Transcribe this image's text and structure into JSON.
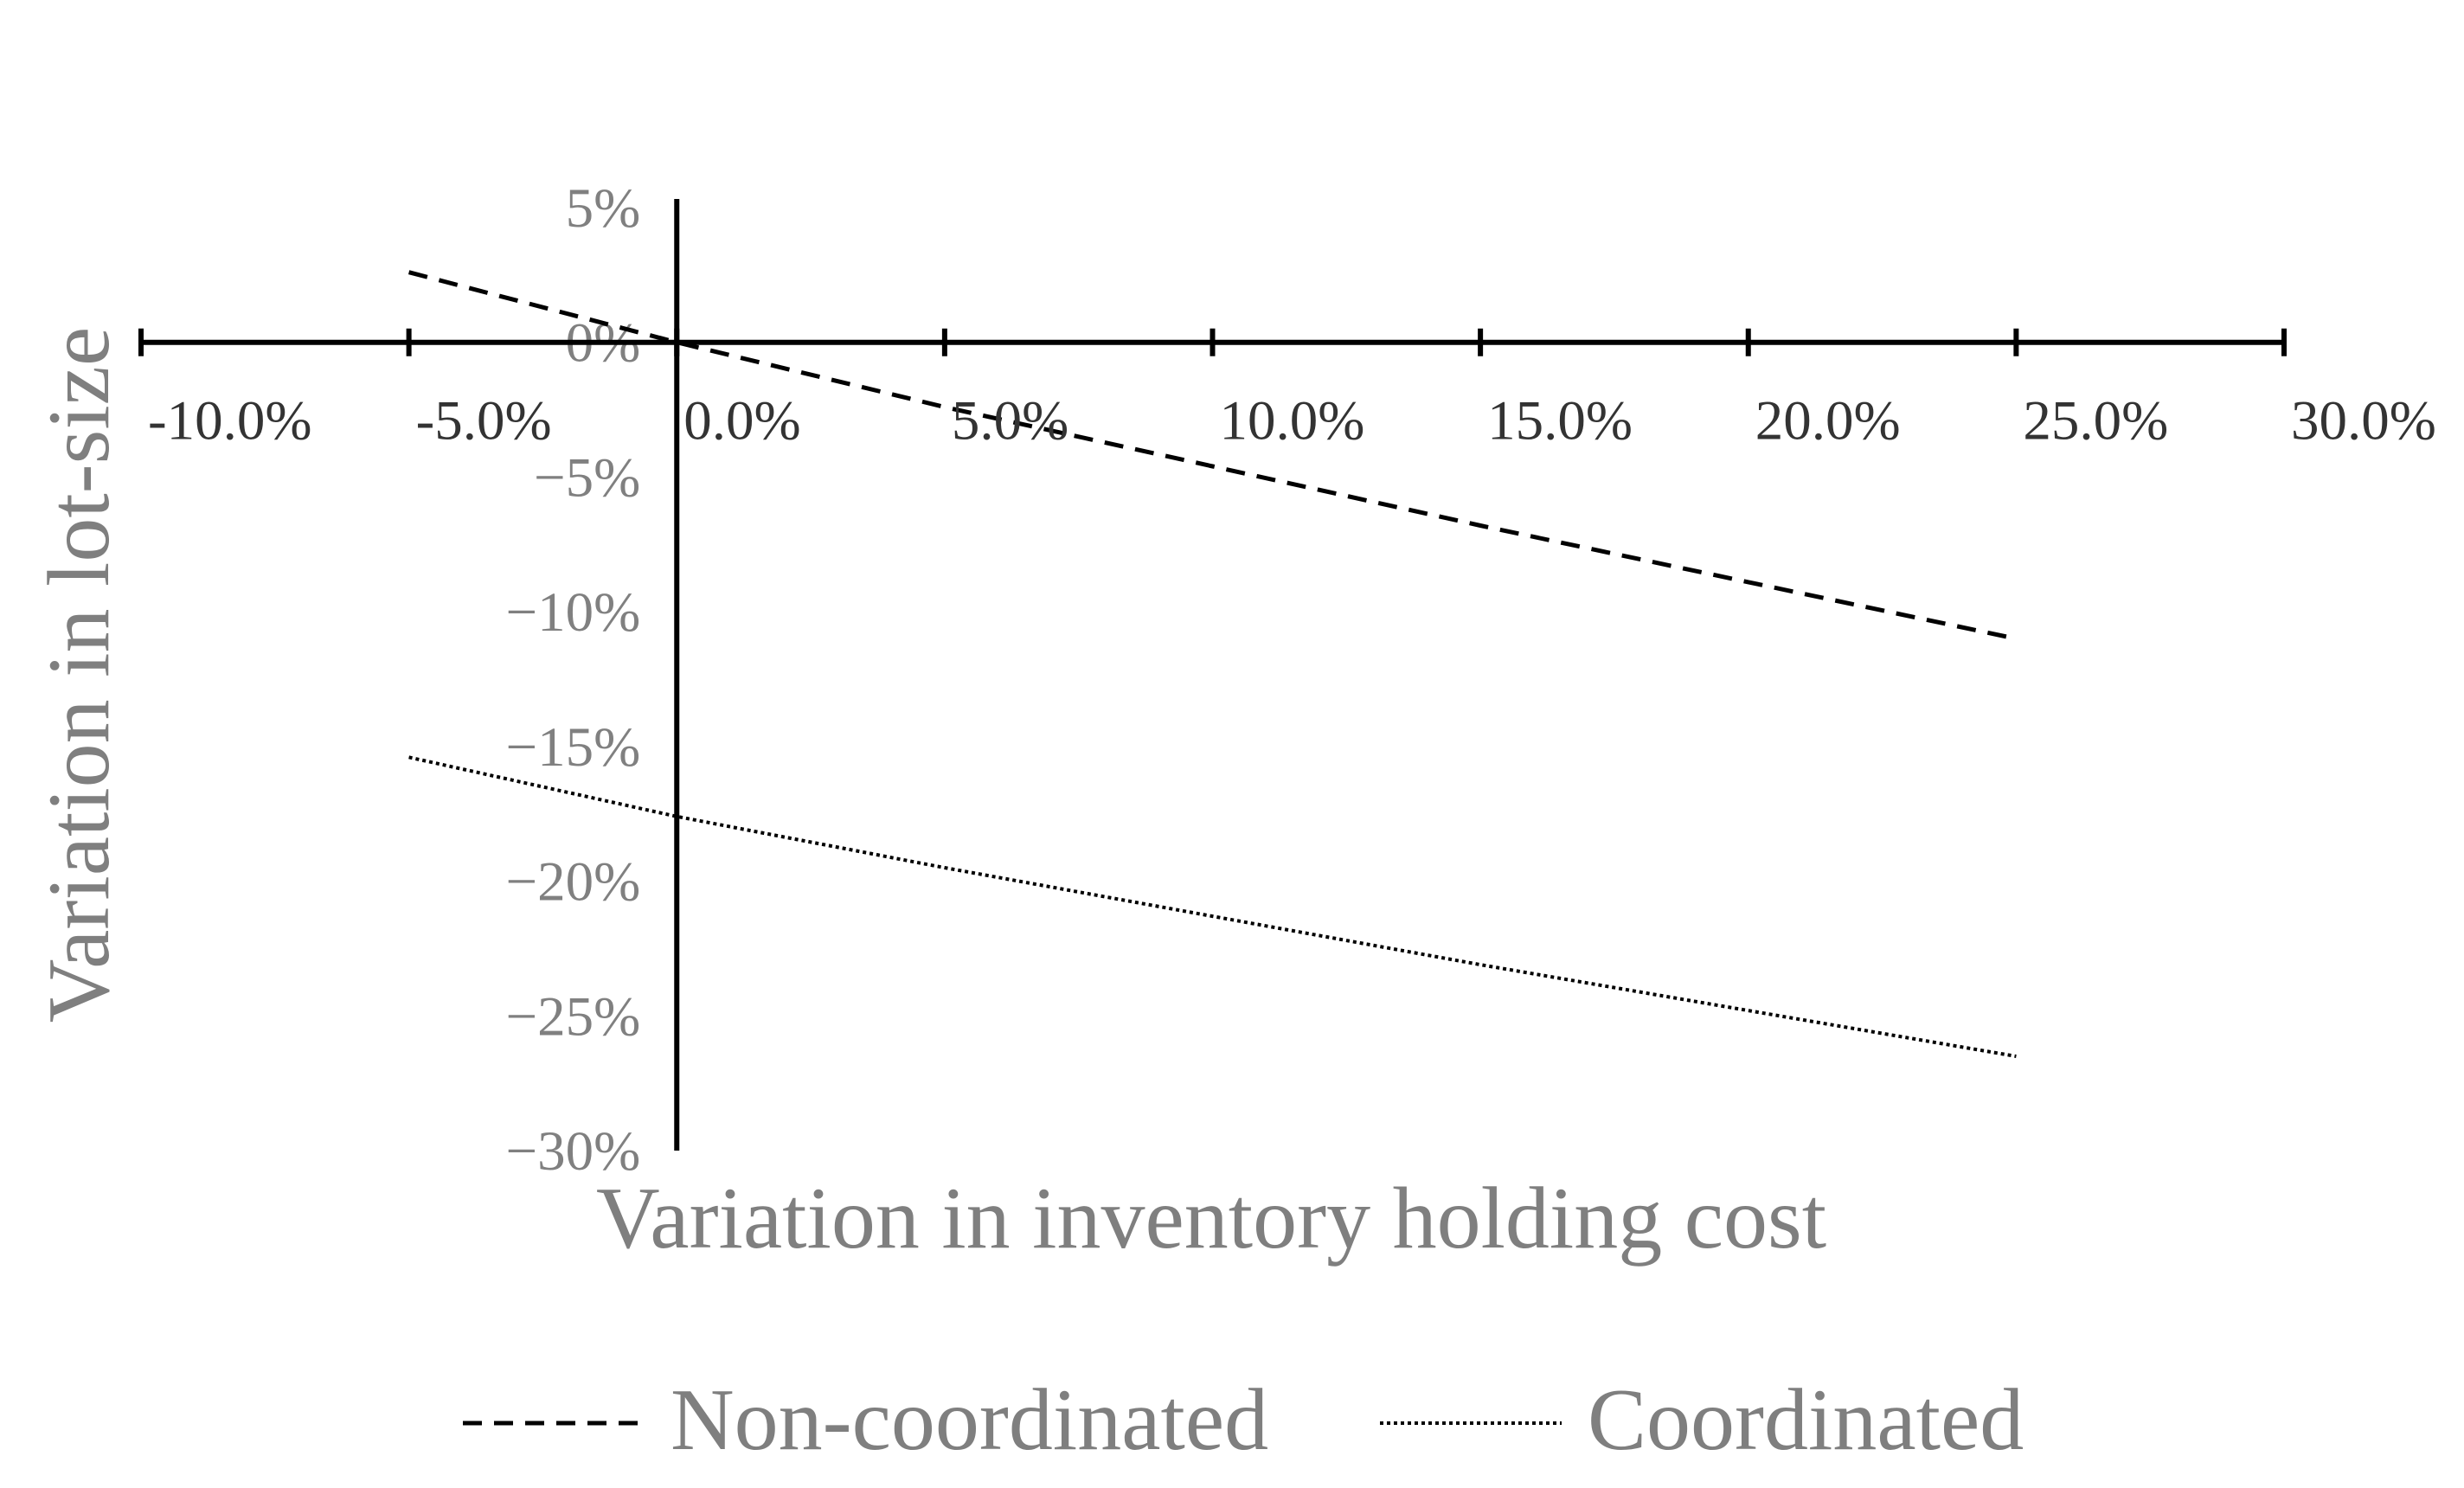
{
  "chart_data": {
    "type": "line",
    "xlabel": "Variation in inventory holding cost",
    "ylabel": "Variation in lot-size",
    "xlim": [
      -10,
      30
    ],
    "ylim": [
      -30,
      5
    ],
    "x_ticks": [
      -10,
      -5,
      0,
      5,
      10,
      15,
      20,
      25,
      30
    ],
    "x_tick_labels": [
      "-10.0%",
      "-5.0%",
      "0.0%",
      "5.0%",
      "10.0%",
      "15.0%",
      "20.0%",
      "25.0%",
      "30.0%"
    ],
    "y_ticks": [
      5,
      0,
      -5,
      -10,
      -15,
      -20,
      -25,
      -30
    ],
    "y_tick_labels": [
      "5%",
      "0%",
      "−5%",
      "−10%",
      "−15%",
      "−20%",
      "−25%",
      "−30%"
    ],
    "grid": false,
    "legend_position": "bottom",
    "series": [
      {
        "name": "Non-coordinated",
        "style": "dashed",
        "color": "#000000",
        "x": [
          -5,
          0,
          5,
          10,
          15,
          20,
          25
        ],
        "y": [
          2.6,
          0.0,
          -2.4,
          -4.6,
          -6.8,
          -8.9,
          -11.0
        ]
      },
      {
        "name": "Coordinated",
        "style": "dotted",
        "color": "#000000",
        "x": [
          -5,
          0,
          5,
          10,
          15,
          20,
          25
        ],
        "y": [
          -15.4,
          -17.6,
          -19.5,
          -21.3,
          -23.1,
          -24.8,
          -26.5
        ]
      }
    ]
  }
}
